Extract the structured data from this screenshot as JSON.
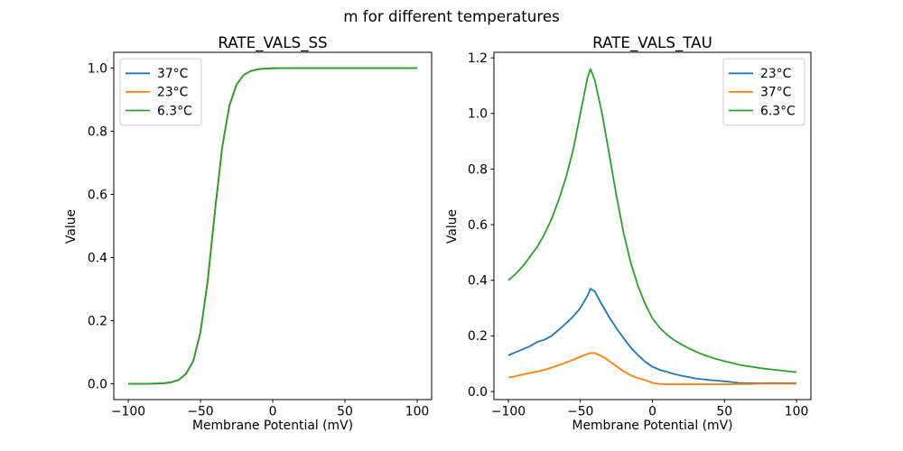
{
  "figure": {
    "suptitle": "m for different temperatures",
    "background_color": "#ffffff",
    "text_color": "#000000",
    "spine_color": "#000000"
  },
  "chart_data": [
    {
      "type": "line",
      "title": "RATE_VALS_SS",
      "xlabel": "Membrane Potential (mV)",
      "ylabel": "Value",
      "grid": false,
      "legend_position": "upper-left",
      "xlim": [
        -110,
        110
      ],
      "ylim": [
        -0.05,
        1.05
      ],
      "xticks": [
        -100,
        -50,
        0,
        50,
        100
      ],
      "xtick_labels": [
        "−100",
        "−50",
        "0",
        "50",
        "100"
      ],
      "yticks": [
        0,
        0.2,
        0.4,
        0.6,
        0.8,
        1.0
      ],
      "ytick_labels": [
        "0.0",
        "0.2",
        "0.4",
        "0.6",
        "0.8",
        "1.0"
      ],
      "x": [
        -100,
        -95,
        -90,
        -85,
        -80,
        -75,
        -70,
        -65,
        -60,
        -55,
        -50,
        -45,
        -40,
        -35,
        -30,
        -25,
        -20,
        -15,
        -10,
        -5,
        0,
        5,
        10,
        15,
        20,
        25,
        30,
        35,
        40,
        45,
        50,
        55,
        60,
        65,
        70,
        75,
        80,
        85,
        90,
        95,
        100
      ],
      "series": [
        {
          "name": "37°C",
          "color": "#1f77b4",
          "values": [
            0.0,
            0.0001,
            0.0001,
            0.0003,
            0.0008,
            0.002,
            0.0051,
            0.0127,
            0.0317,
            0.0719,
            0.163,
            0.326,
            0.545,
            0.748,
            0.881,
            0.948,
            0.9785,
            0.9912,
            0.9965,
            0.9986,
            0.9994,
            0.9998,
            0.9999,
            1.0,
            1.0,
            1.0,
            1.0,
            1.0,
            1.0,
            1.0,
            1.0,
            1.0,
            1.0,
            1.0,
            1.0,
            1.0,
            1.0,
            1.0,
            1.0,
            1.0,
            1.0
          ]
        },
        {
          "name": "23°C",
          "color": "#ff7f0e",
          "values": [
            0.0,
            0.0001,
            0.0001,
            0.0003,
            0.0008,
            0.002,
            0.0051,
            0.0127,
            0.0317,
            0.0719,
            0.163,
            0.326,
            0.545,
            0.748,
            0.881,
            0.948,
            0.9785,
            0.9912,
            0.9965,
            0.9986,
            0.9994,
            0.9998,
            0.9999,
            1.0,
            1.0,
            1.0,
            1.0,
            1.0,
            1.0,
            1.0,
            1.0,
            1.0,
            1.0,
            1.0,
            1.0,
            1.0,
            1.0,
            1.0,
            1.0,
            1.0,
            1.0
          ]
        },
        {
          "name": "6.3°C",
          "color": "#2ca02c",
          "values": [
            0.0,
            0.0001,
            0.0001,
            0.0003,
            0.0008,
            0.002,
            0.0051,
            0.0127,
            0.0317,
            0.0719,
            0.163,
            0.326,
            0.545,
            0.748,
            0.881,
            0.948,
            0.9785,
            0.9912,
            0.9965,
            0.9986,
            0.9994,
            0.9998,
            0.9999,
            1.0,
            1.0,
            1.0,
            1.0,
            1.0,
            1.0,
            1.0,
            1.0,
            1.0,
            1.0,
            1.0,
            1.0,
            1.0,
            1.0,
            1.0,
            1.0,
            1.0,
            1.0
          ]
        }
      ]
    },
    {
      "type": "line",
      "title": "RATE_VALS_TAU",
      "xlabel": "Membrane Potential (mV)",
      "ylabel": "Value",
      "grid": false,
      "legend_position": "upper-right",
      "xlim": [
        -110,
        110
      ],
      "ylim": [
        -0.029,
        1.22
      ],
      "xticks": [
        -100,
        -50,
        0,
        50,
        100
      ],
      "xtick_labels": [
        "−100",
        "−50",
        "0",
        "50",
        "100"
      ],
      "yticks": [
        0,
        0.2,
        0.4,
        0.6,
        0.8,
        1.0,
        1.2
      ],
      "ytick_labels": [
        "0.0",
        "0.2",
        "0.4",
        "0.6",
        "0.8",
        "1.0",
        "1.2"
      ],
      "x": [
        -100,
        -95,
        -90,
        -85,
        -80,
        -75,
        -70,
        -65,
        -60,
        -55,
        -50,
        -45,
        -43,
        -40,
        -35,
        -30,
        -25,
        -20,
        -15,
        -10,
        -5,
        0,
        5,
        10,
        15,
        20,
        25,
        30,
        35,
        40,
        45,
        50,
        55,
        60,
        65,
        70,
        75,
        80,
        85,
        90,
        95,
        100
      ],
      "series": [
        {
          "name": "23°C",
          "color": "#1f77b4",
          "values": [
            0.13,
            0.141,
            0.152,
            0.163,
            0.178,
            0.186,
            0.2,
            0.222,
            0.245,
            0.27,
            0.3,
            0.345,
            0.37,
            0.36,
            0.312,
            0.268,
            0.228,
            0.192,
            0.158,
            0.131,
            0.107,
            0.089,
            0.078,
            0.071,
            0.063,
            0.057,
            0.052,
            0.047,
            0.044,
            0.041,
            0.039,
            0.037,
            0.034,
            0.031,
            0.03,
            0.03,
            0.03,
            0.03,
            0.03,
            0.03,
            0.03,
            0.03
          ]
        },
        {
          "name": "37°C",
          "color": "#ff7f0e",
          "values": [
            0.05,
            0.055,
            0.061,
            0.067,
            0.072,
            0.078,
            0.086,
            0.095,
            0.104,
            0.114,
            0.125,
            0.135,
            0.138,
            0.138,
            0.127,
            0.11,
            0.091,
            0.073,
            0.058,
            0.048,
            0.041,
            0.031,
            0.027,
            0.026,
            0.026,
            0.026,
            0.026,
            0.026,
            0.026,
            0.026,
            0.026,
            0.026,
            0.026,
            0.027,
            0.027,
            0.027,
            0.028,
            0.028,
            0.028,
            0.028,
            0.028,
            0.028
          ]
        },
        {
          "name": "6.3°C",
          "color": "#2ca02c",
          "values": [
            0.4,
            0.423,
            0.45,
            0.485,
            0.52,
            0.565,
            0.62,
            0.69,
            0.77,
            0.87,
            1.0,
            1.13,
            1.16,
            1.12,
            1.0,
            0.855,
            0.705,
            0.57,
            0.462,
            0.38,
            0.315,
            0.263,
            0.23,
            0.205,
            0.185,
            0.17,
            0.156,
            0.144,
            0.133,
            0.124,
            0.116,
            0.109,
            0.103,
            0.097,
            0.092,
            0.088,
            0.084,
            0.081,
            0.078,
            0.075,
            0.072,
            0.07
          ]
        }
      ]
    }
  ]
}
